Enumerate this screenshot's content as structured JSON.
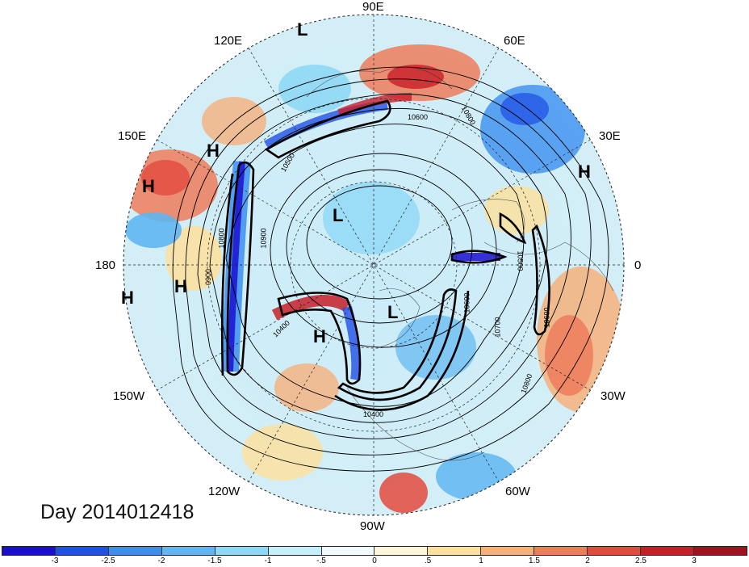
{
  "title": "Day 2014012418",
  "longitude_labels": {
    "lon_90e": "90E",
    "lon_60e": "60E",
    "lon_30e": "30E",
    "lon_0": "0",
    "lon_30w": "30W",
    "lon_60w": "60W",
    "lon_90w": "90W",
    "lon_120w": "120W",
    "lon_150w": "150W",
    "lon_180": "180",
    "lon_150e": "150E",
    "lon_120e": "120E"
  },
  "pressure_centers": {
    "high": "H",
    "low": "L"
  },
  "contour_labels": {
    "c1": "10600",
    "c2": "10800",
    "c3": "10500",
    "c4": "10800",
    "c5": "10900",
    "c6": "0900",
    "c7": "10600",
    "c8": "10700",
    "c9": "10800",
    "c10": "10400",
    "c11": "10500",
    "c12": "10400",
    "c13": "10600"
  },
  "colorbar": {
    "colors": [
      "#1a0fd0",
      "#2050e6",
      "#3b8ef0",
      "#5fb6f2",
      "#8fd8f5",
      "#c4eefa",
      "#f2fbff",
      "#fdf6d8",
      "#fbe0a0",
      "#f6b07c",
      "#ef7d5c",
      "#e34a3e",
      "#c81e28",
      "#a3101e"
    ],
    "ticks": [
      "-3",
      "-2.5",
      "-2",
      "-1.5",
      "-1",
      "-.5",
      "0",
      ".5",
      "1",
      "1.5",
      "2",
      "2.5",
      "3"
    ]
  }
}
